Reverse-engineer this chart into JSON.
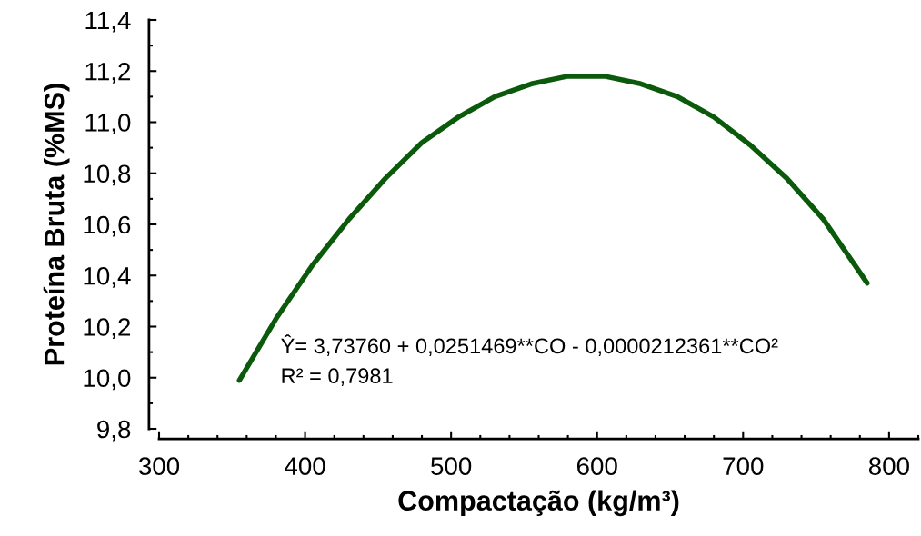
{
  "chart_data": {
    "type": "line",
    "xlabel": "Compactação (kg/m³)",
    "ylabel": "Proteína Bruta (%MS)",
    "x": [
      355,
      380,
      405,
      430,
      455,
      480,
      505,
      530,
      555,
      580,
      592,
      605,
      630,
      655,
      680,
      705,
      730,
      755,
      785
    ],
    "series": [
      {
        "color": "#0b5a0b",
        "values": [
          9.99,
          10.23,
          10.44,
          10.62,
          10.78,
          10.92,
          11.02,
          11.1,
          11.15,
          11.18,
          11.18,
          11.18,
          11.15,
          11.1,
          11.02,
          10.91,
          10.78,
          10.62,
          10.37
        ]
      }
    ],
    "xlim": [
      300,
      820
    ],
    "xticks": [
      300,
      400,
      500,
      600,
      700,
      800
    ],
    "ylim": [
      9.8,
      11.4
    ],
    "yticks": [
      {
        "value": 9.8,
        "label": "9,8"
      },
      {
        "value": 10.0,
        "label": "10,0"
      },
      {
        "value": 10.2,
        "label": "10,2"
      },
      {
        "value": 10.4,
        "label": "10,4"
      },
      {
        "value": 10.6,
        "label": "10,6"
      },
      {
        "value": 10.8,
        "label": "10,8"
      },
      {
        "value": 11.0,
        "label": "11,0"
      },
      {
        "value": 11.2,
        "label": "11,2"
      },
      {
        "value": 11.4,
        "label": "11,4"
      }
    ],
    "annotations": [
      "Ŷ= 3,73760 + 0,0251469**CO - 0,0000212361**CO²",
      "R² = 0,7981"
    ],
    "grid": false,
    "legend": false,
    "marker": "none",
    "line_style": "solid"
  }
}
